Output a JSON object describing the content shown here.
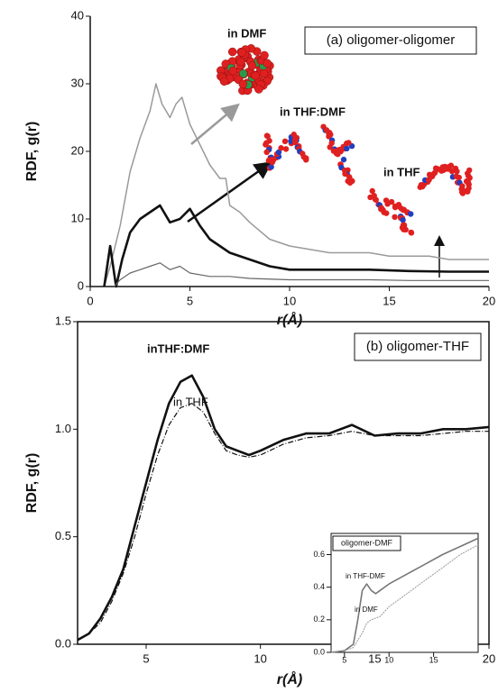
{
  "chart_data": [
    {
      "type": "line",
      "title": "(a) oligomer-oligomer",
      "x_label": "r(Å)",
      "y_label": "RDF, g(r)",
      "xlim": [
        0,
        20
      ],
      "ylim": [
        0,
        40
      ],
      "xticks": [
        0,
        5,
        10,
        15,
        20
      ],
      "yticks": [
        0,
        10,
        20,
        30,
        40
      ],
      "series": [
        {
          "name": "in DMF",
          "color": "#9a9a9a",
          "x": [
            0.7,
            1,
            1.5,
            2,
            2.5,
            3,
            3.3,
            3.6,
            4,
            4.3,
            4.6,
            5,
            5.5,
            6,
            6.5,
            6.8,
            7,
            7.5,
            8,
            9,
            10,
            11,
            12,
            13,
            14,
            15,
            16,
            17,
            18,
            19,
            20
          ],
          "values": [
            0,
            3,
            9,
            17,
            22,
            26,
            30,
            27,
            25,
            27,
            28,
            24,
            21,
            18,
            16,
            16,
            12,
            11,
            9.5,
            7,
            6,
            5.5,
            5,
            5,
            5,
            4.5,
            4.5,
            4.5,
            4,
            4,
            4
          ]
        },
        {
          "name": "in THF:DMF",
          "color": "#111111",
          "x": [
            0.7,
            1,
            1.3,
            1.6,
            2,
            2.5,
            3,
            3.5,
            4,
            4.5,
            5,
            5.5,
            6,
            7,
            8,
            9,
            10,
            12,
            14,
            16,
            18,
            20
          ],
          "values": [
            0,
            6,
            0,
            4,
            8,
            10,
            11,
            12,
            9.5,
            10,
            11.5,
            9,
            7,
            5,
            4,
            3,
            2.5,
            2.5,
            2.5,
            2.3,
            2.2,
            2.2
          ]
        },
        {
          "name": "in THF",
          "color": "#666666",
          "x": [
            1.2,
            1.5,
            2,
            2.5,
            3,
            3.5,
            4,
            4.5,
            5,
            6,
            7,
            8,
            10,
            12,
            14,
            16,
            18,
            20
          ],
          "values": [
            0,
            1,
            2,
            2.5,
            3,
            3.5,
            2.5,
            3,
            2,
            1.5,
            1.5,
            1.2,
            1,
            1,
            1,
            0.9,
            0.9,
            0.9
          ]
        }
      ]
    },
    {
      "type": "line",
      "title": "(b) oligomer-THF",
      "x_label": "r(Å)",
      "y_label": "RDF, g(r)",
      "xlim": [
        2,
        20
      ],
      "ylim": [
        0,
        1.5
      ],
      "xticks": [
        5,
        10,
        15,
        20
      ],
      "yticks": [
        {
          "value": 0,
          "label": "0.0"
        },
        {
          "value": 0.5,
          "label": "0.5"
        },
        {
          "value": 1,
          "label": "1.0"
        },
        {
          "value": 1.5,
          "label": "1.5"
        }
      ],
      "series": [
        {
          "name": "inTHF:DMF",
          "color": "#111111",
          "x": [
            2,
            2.5,
            3,
            3.5,
            4,
            4.5,
            5,
            5.5,
            6,
            6.5,
            7,
            7.5,
            8,
            8.5,
            9,
            9.5,
            10,
            11,
            12,
            13,
            14,
            15,
            16,
            17,
            18,
            19,
            20
          ],
          "values": [
            0.02,
            0.05,
            0.12,
            0.22,
            0.35,
            0.55,
            0.75,
            0.95,
            1.12,
            1.22,
            1.25,
            1.15,
            1.0,
            0.92,
            0.9,
            0.88,
            0.9,
            0.95,
            0.98,
            0.98,
            1.02,
            0.97,
            0.98,
            0.98,
            1.0,
            1.0,
            1.01
          ]
        },
        {
          "name": "in THF",
          "color": "#111111",
          "x": [
            2,
            2.5,
            3,
            3.5,
            4,
            4.5,
            5,
            5.5,
            6,
            6.5,
            7,
            7.5,
            8,
            8.5,
            9,
            9.5,
            10,
            11,
            12,
            13,
            14,
            15,
            16,
            17,
            18,
            19,
            20
          ],
          "values": [
            0.02,
            0.05,
            0.1,
            0.2,
            0.33,
            0.5,
            0.7,
            0.88,
            1.02,
            1.1,
            1.12,
            1.08,
            0.98,
            0.9,
            0.88,
            0.87,
            0.88,
            0.93,
            0.96,
            0.97,
            0.99,
            0.97,
            0.97,
            0.97,
            0.98,
            0.99,
            0.99
          ]
        }
      ]
    },
    {
      "type": "line",
      "title": "oligomer-DMF",
      "xlim": [
        3.5,
        20
      ],
      "ylim": [
        0,
        0.73
      ],
      "xticks": [
        5,
        10,
        15
      ],
      "yticks": [
        {
          "value": 0,
          "label": "0.0"
        },
        {
          "value": 0.2,
          "label": "0.2"
        },
        {
          "value": 0.4,
          "label": "0.4"
        },
        {
          "value": 0.6,
          "label": "0.6"
        }
      ],
      "series": [
        {
          "name": "in THF-DMF",
          "color": "#777777",
          "x": [
            3.5,
            5,
            6,
            6.5,
            7,
            7.5,
            8,
            8.5,
            9,
            10,
            12,
            14,
            16,
            18,
            20
          ],
          "values": [
            0,
            0.01,
            0.05,
            0.2,
            0.38,
            0.42,
            0.38,
            0.36,
            0.38,
            0.42,
            0.48,
            0.54,
            0.6,
            0.65,
            0.7
          ]
        },
        {
          "name": "in DMF",
          "color": "#999999",
          "x": [
            3.5,
            5,
            6,
            7,
            7.5,
            8,
            9,
            10,
            12,
            14,
            16,
            18,
            20
          ],
          "values": [
            0,
            0.01,
            0.03,
            0.12,
            0.18,
            0.2,
            0.22,
            0.28,
            0.36,
            0.44,
            0.52,
            0.6,
            0.66
          ]
        }
      ]
    }
  ]
}
